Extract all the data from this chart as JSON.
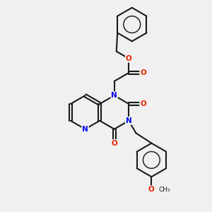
{
  "bg_color": "#f0f0f0",
  "bond_color": "#1a1a1a",
  "N_color": "#0000ee",
  "O_color": "#ee2200",
  "line_width": 1.5,
  "fig_size": [
    3.0,
    3.0
  ],
  "dpi": 100,
  "xlim": [
    0,
    10
  ],
  "ylim": [
    0,
    10
  ]
}
